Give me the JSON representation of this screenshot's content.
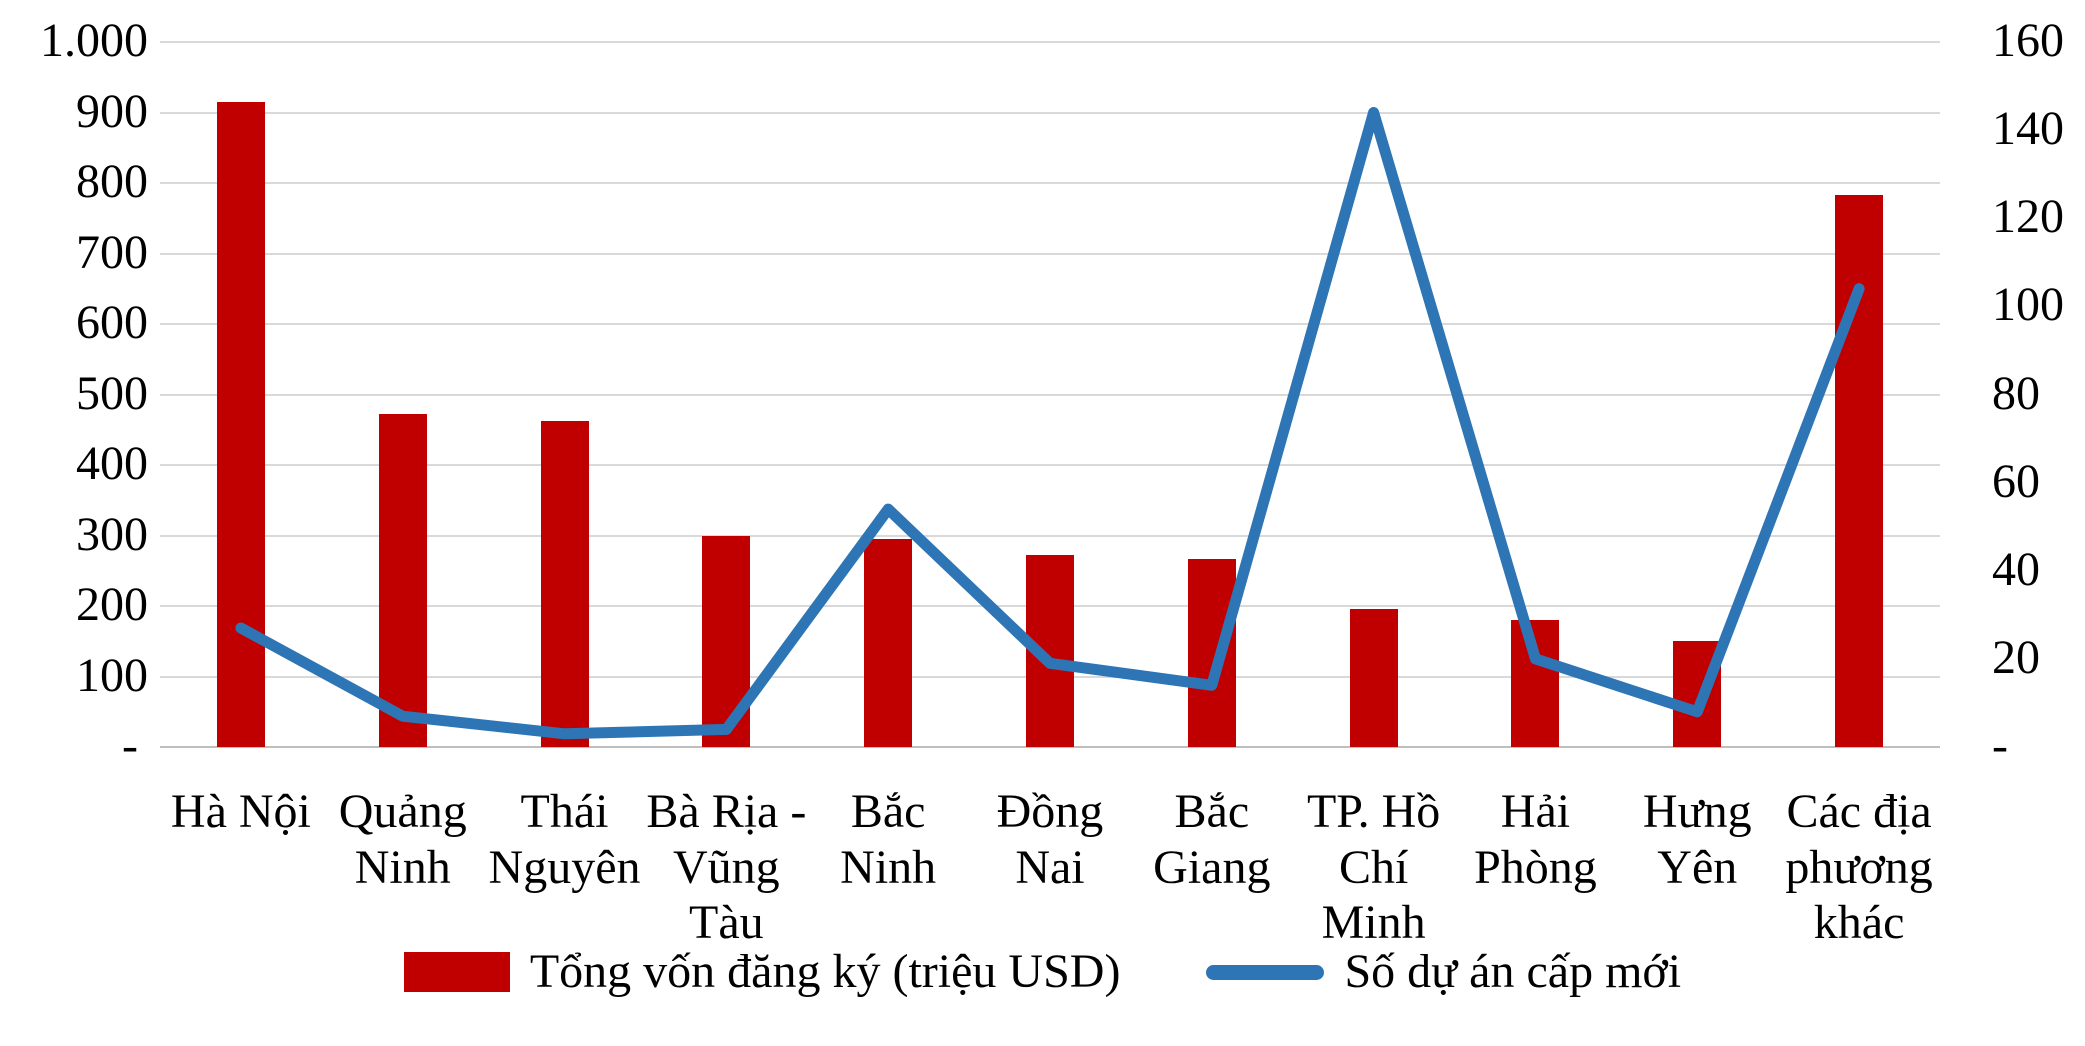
{
  "chart_data": {
    "type": "combo-bar-line",
    "categories": [
      "Hà Nội",
      "Quảng Ninh",
      "Thái Nguyên",
      "Bà Rịa - Vũng Tàu",
      "Bắc Ninh",
      "Đồng Nai",
      "Bắc Giang",
      "TP. Hồ Chí Minh",
      "Hải Phòng",
      "Hưng Yên",
      "Các địa phương khác"
    ],
    "category_label_lines": [
      [
        "Hà Nội"
      ],
      [
        "Quảng",
        "Ninh"
      ],
      [
        "Thái",
        "Nguyên"
      ],
      [
        "Bà Rịa -",
        "Vũng",
        "Tàu"
      ],
      [
        "Bắc",
        "Ninh"
      ],
      [
        "Đồng",
        "Nai"
      ],
      [
        "Bắc",
        "Giang"
      ],
      [
        "TP. Hồ",
        "Chí",
        "Minh"
      ],
      [
        "Hải",
        "Phòng"
      ],
      [
        "Hưng",
        "Yên"
      ],
      [
        "Các địa",
        "phương",
        "khác"
      ]
    ],
    "series": [
      {
        "name": "Tổng vốn đăng ký (triệu USD)",
        "type": "bar",
        "axis": "left",
        "color": "#C00000",
        "values": [
          915,
          472,
          462,
          300,
          295,
          272,
          267,
          196,
          180,
          151,
          783
        ]
      },
      {
        "name": "Số dự án cấp mới",
        "type": "line",
        "axis": "right",
        "color": "#2E75B6",
        "values": [
          27,
          7,
          3,
          4,
          54,
          19,
          14,
          144,
          20,
          8,
          104
        ]
      }
    ],
    "left_axis": {
      "min": 0,
      "max": 1000,
      "tick_step": 100,
      "tick_labels": [
        "1.000",
        "900",
        "800",
        "700",
        "600",
        "500",
        "400",
        "300",
        "200",
        "100",
        "-"
      ]
    },
    "right_axis": {
      "min": 0,
      "max": 160,
      "tick_step": 20,
      "tick_labels": [
        "160",
        "140",
        "120",
        "100",
        "80",
        "60",
        "40",
        "20",
        "-"
      ]
    },
    "grid": true,
    "legend_position": "bottom"
  },
  "colors": {
    "bar": "#C00000",
    "line": "#2E75B6",
    "gridline": "#D9D9D9",
    "axis_line": "#BFBFBF",
    "text": "#000000",
    "background": "#FFFFFF"
  }
}
